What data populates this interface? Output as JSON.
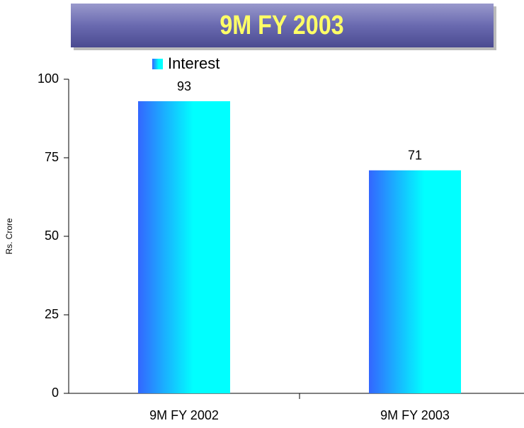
{
  "chart_data": {
    "type": "bar",
    "title": "9M FY 2003",
    "y_label": "Rs. Crore",
    "categories": [
      "9M FY 2002",
      "9M FY 2003"
    ],
    "series": [
      {
        "name": "Interest",
        "color": "#3366ff",
        "values": [
          93,
          71
        ]
      }
    ],
    "ylim": [
      0,
      100
    ],
    "yticks": [
      0,
      25,
      50,
      75,
      100
    ],
    "grid": false
  }
}
